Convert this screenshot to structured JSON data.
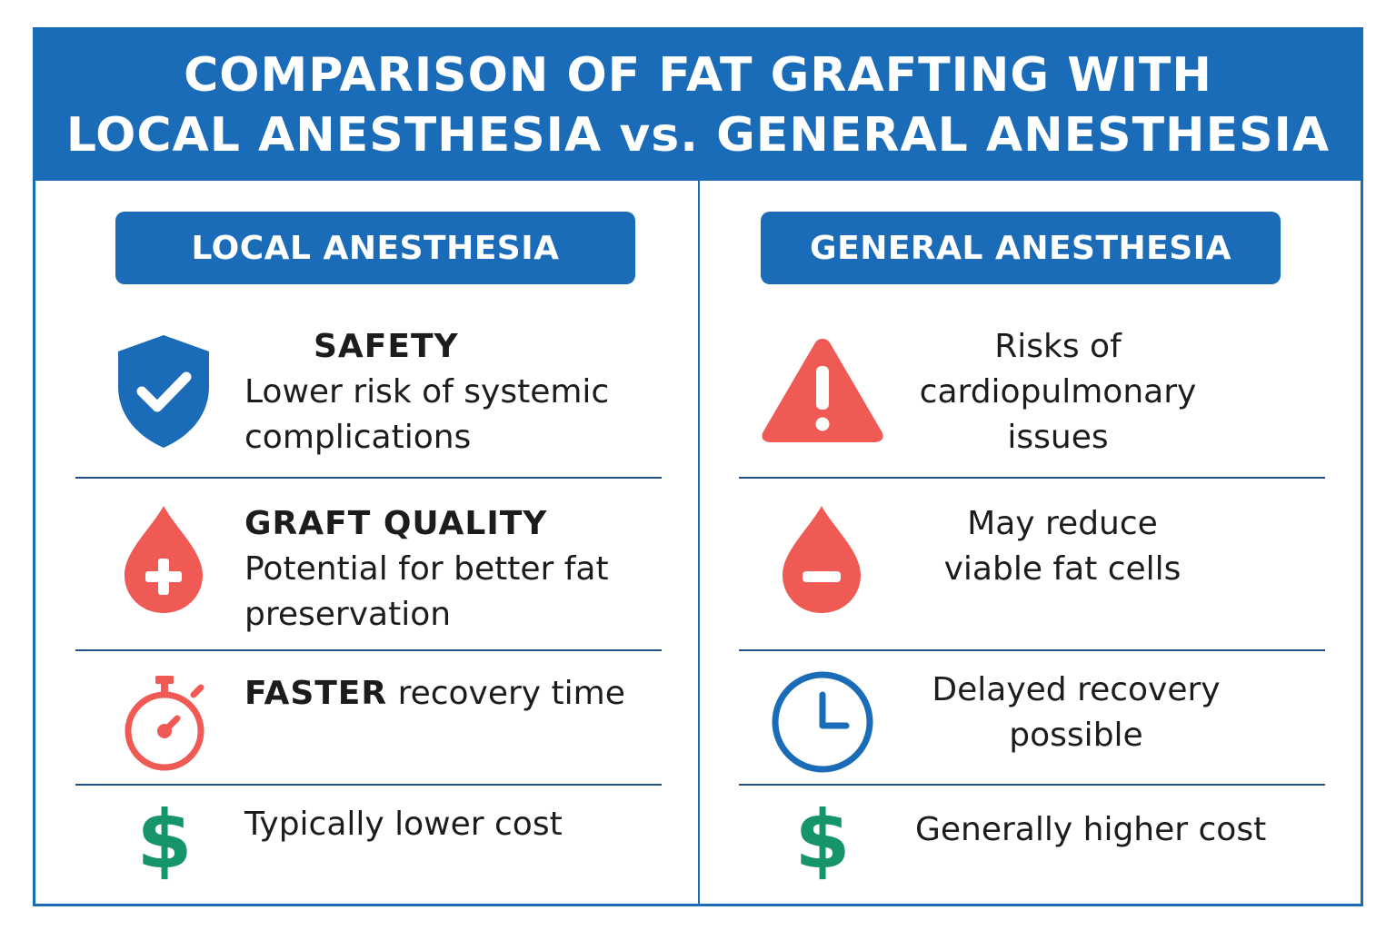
{
  "title": {
    "line1": "COMPARISON OF FAT GRAFTING WITH",
    "line2": "LOCAL ANESTHESIA vs. GENERAL ANESTHESIA"
  },
  "colors": {
    "primary": "#1a6cb8",
    "danger": "#f05a55",
    "money": "#17956a"
  },
  "local": {
    "header": "LOCAL ANESTHESIA",
    "rows": [
      {
        "icon": "shield-check-icon",
        "heading": "SAFETY",
        "text": "Lower risk of systemic complications"
      },
      {
        "icon": "blood-drop-plus-icon",
        "heading": "GRAFT QUALITY",
        "text": "Potential for better fat preservation"
      },
      {
        "icon": "stopwatch-icon",
        "heading": "FASTER",
        "text": "recovery time"
      },
      {
        "icon": "dollar-icon",
        "heading": "",
        "text": "Typically lower cost"
      }
    ]
  },
  "general": {
    "header": "GENERAL ANESTHESIA",
    "rows": [
      {
        "icon": "warning-triangle-icon",
        "text": "Risks of cardiopulmonary issues"
      },
      {
        "icon": "blood-drop-minus-icon",
        "text": "May reduce viable fat cells"
      },
      {
        "icon": "clock-icon",
        "text": "Delayed recovery possible"
      },
      {
        "icon": "dollar-icon",
        "text": "Generally higher cost"
      }
    ]
  }
}
